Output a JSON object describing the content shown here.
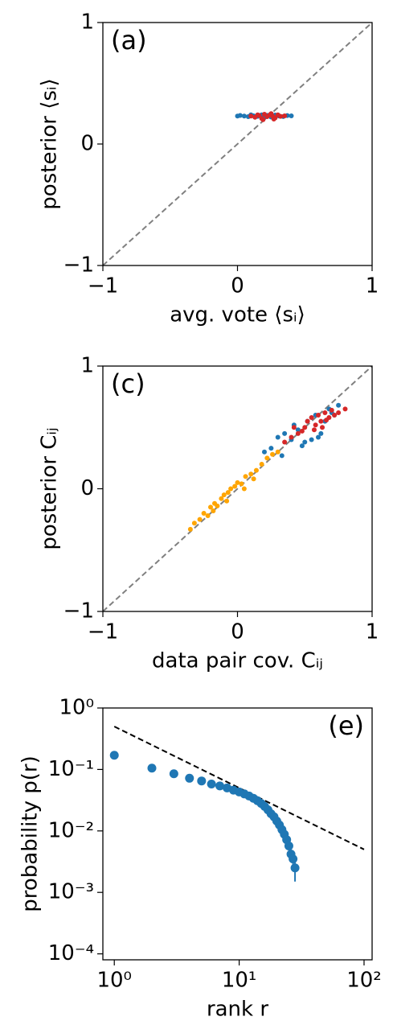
{
  "chart_data": [
    {
      "type": "scatter",
      "annotation": "(a)",
      "x_label": "avg. vote ⟨sᵢ⟩",
      "y_label": "posterior ⟨sᵢ⟩",
      "xlim": [
        -1,
        1
      ],
      "ylim": [
        -1,
        1
      ],
      "xticks": [
        {
          "value": -1,
          "label": "−1"
        },
        0,
        1
      ],
      "yticks": [
        {
          "value": -1,
          "label": "−1"
        },
        0,
        1
      ],
      "series": [
        {
          "mode": "line",
          "dash": true,
          "color": "#808080",
          "x": [
            -1,
            1
          ],
          "values": [
            -1,
            1
          ]
        },
        {
          "mode": "markers",
          "color": "#1f77b4",
          "x": [
            0.0,
            0.02,
            0.05,
            0.08,
            0.12,
            0.15,
            0.18,
            0.22,
            0.25,
            0.28,
            0.31,
            0.34,
            0.37,
            0.4,
            0.2,
            0.1
          ],
          "values": [
            0.23,
            0.235,
            0.23,
            0.225,
            0.232,
            0.228,
            0.24,
            0.236,
            0.222,
            0.238,
            0.23,
            0.226,
            0.234,
            0.232,
            0.218,
            0.24
          ]
        },
        {
          "mode": "markers",
          "color": "#d62728",
          "x": [
            0.1,
            0.13,
            0.16,
            0.18,
            0.2,
            0.22,
            0.24,
            0.26,
            0.28,
            0.3,
            0.32,
            0.35,
            0.19,
            0.25,
            0.15,
            0.27
          ],
          "values": [
            0.23,
            0.22,
            0.235,
            0.21,
            0.245,
            0.225,
            0.24,
            0.23,
            0.215,
            0.24,
            0.228,
            0.232,
            0.2,
            0.25,
            0.24,
            0.205
          ]
        }
      ]
    },
    {
      "type": "scatter",
      "annotation": "(c)",
      "x_label": "data pair cov. Cᵢⱼ",
      "y_label": "posterior Cᵢⱼ",
      "xlim": [
        -1,
        1
      ],
      "ylim": [
        -1,
        1
      ],
      "xticks": [
        {
          "value": -1,
          "label": "−1"
        },
        0,
        1
      ],
      "yticks": [
        {
          "value": -1,
          "label": "−1"
        },
        0,
        1
      ],
      "series": [
        {
          "mode": "line",
          "dash": true,
          "color": "#808080",
          "x": [
            -1,
            1
          ],
          "values": [
            -1,
            1
          ]
        },
        {
          "mode": "markers",
          "color": "#1f77b4",
          "x": [
            0.2,
            0.25,
            0.3,
            0.35,
            0.4,
            0.45,
            0.5,
            0.55,
            0.6,
            0.65,
            0.7,
            0.75,
            0.42,
            0.52,
            0.58,
            0.62,
            0.68,
            0.33,
            0.48,
            0.72
          ],
          "values": [
            0.3,
            0.33,
            0.42,
            0.45,
            0.4,
            0.48,
            0.38,
            0.4,
            0.42,
            0.55,
            0.62,
            0.68,
            0.52,
            0.55,
            0.6,
            0.45,
            0.65,
            0.27,
            0.35,
            0.6
          ]
        },
        {
          "mode": "markers",
          "color": "#d62728",
          "x": [
            0.35,
            0.4,
            0.45,
            0.5,
            0.52,
            0.55,
            0.58,
            0.6,
            0.62,
            0.65,
            0.68,
            0.7,
            0.72,
            0.75,
            0.8,
            0.48,
            0.57,
            0.63,
            0.66,
            0.42
          ],
          "values": [
            0.38,
            0.42,
            0.45,
            0.5,
            0.55,
            0.58,
            0.52,
            0.6,
            0.55,
            0.62,
            0.58,
            0.64,
            0.6,
            0.62,
            0.65,
            0.47,
            0.48,
            0.5,
            0.56,
            0.5
          ]
        },
        {
          "mode": "markers",
          "color": "#ffa500",
          "x": [
            -0.35,
            -0.32,
            -0.28,
            -0.25,
            -0.22,
            -0.2,
            -0.17,
            -0.15,
            -0.12,
            -0.1,
            -0.07,
            -0.05,
            -0.02,
            0.0,
            0.03,
            0.06,
            0.1,
            0.14,
            0.18,
            0.22,
            0.26,
            0.3,
            -0.18,
            -0.08,
            0.05,
            0.12
          ],
          "values": [
            -0.33,
            -0.28,
            -0.25,
            -0.2,
            -0.22,
            -0.15,
            -0.12,
            -0.14,
            -0.08,
            -0.05,
            -0.03,
            0.0,
            0.02,
            0.05,
            0.04,
            0.1,
            0.12,
            0.15,
            0.2,
            0.25,
            0.28,
            0.3,
            -0.18,
            -0.1,
            0.0,
            0.08
          ]
        }
      ]
    },
    {
      "type": "scatter",
      "annotation": "(e)",
      "x_label": "rank r",
      "y_label": "probability p(r)",
      "log_x": true,
      "log_y": true,
      "xlim": [
        0.81,
        116
      ],
      "ylim": [
        8e-05,
        1
      ],
      "xticks": [
        {
          "value": 1,
          "label": "10⁰"
        },
        {
          "value": 10,
          "label": "10¹"
        },
        {
          "value": 100,
          "label": "10²"
        }
      ],
      "yticks": [
        {
          "value": 1,
          "label": "10⁰"
        },
        {
          "value": 0.1,
          "label": "10⁻¹"
        },
        {
          "value": 0.01,
          "label": "10⁻²"
        },
        {
          "value": 0.001,
          "label": "10⁻³"
        },
        {
          "value": 0.0001,
          "label": "10⁻⁴"
        }
      ],
      "series": [
        {
          "mode": "line",
          "dash": true,
          "color": "#000000",
          "x": [
            1,
            100
          ],
          "values": [
            0.5,
            0.005
          ]
        },
        {
          "mode": "markers",
          "big": true,
          "color": "#1f77b4",
          "x": [
            1,
            2,
            3,
            4,
            5,
            6,
            7,
            8,
            9,
            10,
            11,
            12,
            13,
            14,
            15,
            16,
            17,
            18,
            19,
            20,
            21,
            22,
            23,
            24,
            25,
            26,
            27,
            28
          ],
          "values": [
            0.17,
            0.105,
            0.085,
            0.072,
            0.065,
            0.058,
            0.054,
            0.05,
            0.046,
            0.043,
            0.04,
            0.037,
            0.034,
            0.031,
            0.028,
            0.025,
            0.022,
            0.019,
            0.017,
            0.0145,
            0.0125,
            0.0105,
            0.0088,
            0.0072,
            0.0057,
            0.0042,
            0.0035,
            0.0025
          ],
          "errors": [
            0.004,
            0.003,
            0.003,
            0.002,
            0.002,
            0.002,
            0.002,
            0.002,
            0.002,
            0.002,
            0.002,
            0.002,
            0.002,
            0.002,
            0.002,
            0.002,
            0.001,
            0.001,
            0.001,
            0.001,
            0.001,
            0.001,
            0.001,
            0.001,
            0.0008,
            0.0008,
            0.0008,
            0.001
          ]
        }
      ]
    }
  ]
}
